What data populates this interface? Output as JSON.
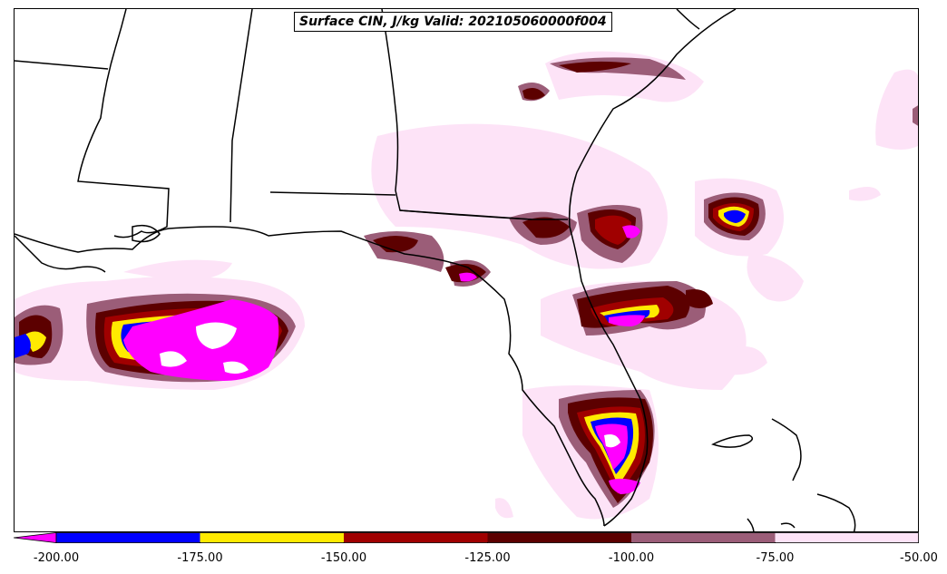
{
  "title": "Surface CIN, J/kg Valid: 202105060000f004",
  "colorbar": {
    "ticks": [
      "-200.00",
      "-175.00",
      "-150.00",
      "-125.00",
      "-100.00",
      "-75.00",
      "-50.00"
    ],
    "levels": [
      {
        "from": -200,
        "to": -175,
        "color": "#0000ff"
      },
      {
        "from": -175,
        "to": -150,
        "color": "#ffea00"
      },
      {
        "from": -150,
        "to": -125,
        "color": "#a00000"
      },
      {
        "from": -125,
        "to": -100,
        "color": "#5c0000"
      },
      {
        "from": -100,
        "to": -75,
        "color": "#9b5d78"
      },
      {
        "from": -75,
        "to": -50,
        "color": "#fde3f7"
      }
    ],
    "extend_min_color": "#ff00ff"
  },
  "map": {
    "region": "Southeastern United States, Gulf of Mexico and Florida",
    "land_color": "#ffffff",
    "border_color": "#000000"
  }
}
